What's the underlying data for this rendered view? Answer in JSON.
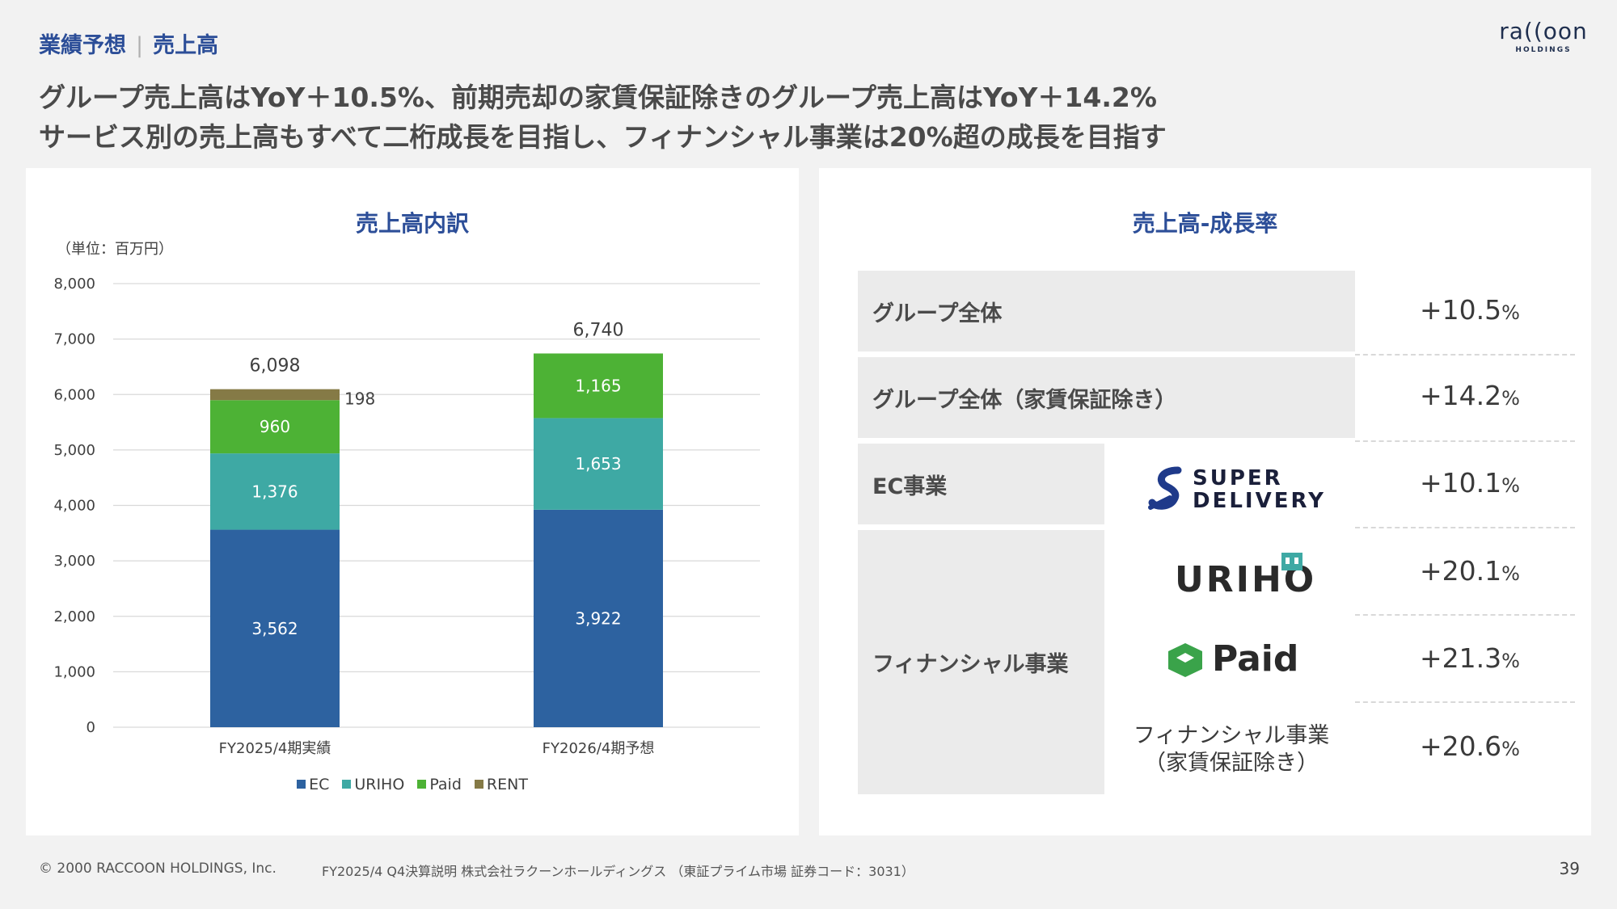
{
  "header": {
    "section": "業績予想",
    "subsection": "売上高"
  },
  "logo": {
    "word": "ra((oon",
    "sub": "HOLDINGS"
  },
  "headline": {
    "line1": "グループ売上高はYoY＋10.5%、前期売却の家賃保証除きのグループ売上高はYoY＋14.2%",
    "line2": "サービス別の売上高もすべて二桁成長を目指し、フィナンシャル事業は20%超の成長を目指す"
  },
  "left_panel": {
    "title": "売上高内訳",
    "unit": "（単位：百万円）"
  },
  "chart_data": {
    "type": "bar",
    "stacked": true,
    "categories": [
      "FY2025/4期実績",
      "FY2026/4期予想"
    ],
    "series": [
      {
        "name": "EC",
        "values": [
          3562,
          3922
        ],
        "color": "#2d62a0"
      },
      {
        "name": "URIHO",
        "values": [
          1376,
          1653
        ],
        "color": "#3ea9a4"
      },
      {
        "name": "Paid",
        "values": [
          960,
          1165
        ],
        "color": "#4db235"
      },
      {
        "name": "RENT",
        "values": [
          198,
          null
        ],
        "color": "#857a46"
      }
    ],
    "value_labels": [
      [
        "3,562",
        "1,376",
        "960",
        "198"
      ],
      [
        "3,922",
        "1,653",
        "1,165",
        ""
      ]
    ],
    "totals": [
      "6,098",
      "6,740"
    ],
    "total_values": [
      6098,
      6740
    ],
    "ylim": [
      0,
      8000
    ],
    "yticks": [
      0,
      1000,
      2000,
      3000,
      4000,
      5000,
      6000,
      7000,
      8000
    ],
    "ytick_labels": [
      "0",
      "1,000",
      "2,000",
      "3,000",
      "4,000",
      "5,000",
      "6,000",
      "7,000",
      "8,000"
    ],
    "grid": true,
    "legend_position": "bottom"
  },
  "right_panel": {
    "title": "売上高-成長率",
    "rows": [
      {
        "label": "グループ全体",
        "rate": "+10.5",
        "pct": "%"
      },
      {
        "label": "グループ全体（家賃保証除き）",
        "rate": "+14.2",
        "pct": "%"
      },
      {
        "label": "EC事業",
        "brand": "SUPER DELIVERY",
        "brand_line1": "SUPER",
        "brand_line2": "DELIVERY",
        "rate": "+10.1",
        "pct": "%"
      },
      {
        "brand": "URIHO",
        "rate": "+20.1",
        "pct": "%"
      },
      {
        "brand": "Paid",
        "rate": "+21.3",
        "pct": "%"
      },
      {
        "sub_line1": "フィナンシャル事業",
        "sub_line2": "（家賃保証除き）",
        "rate": "+20.6",
        "pct": "%"
      }
    ],
    "finance_label": "フィナンシャル事業"
  },
  "footer": {
    "copyright": "© 2000 RACCOON HOLDINGS, Inc.",
    "document": "FY2025/4 Q4決算説明 株式会社ラクーンホールディングス （東証プライム市場 証券コード：3031）",
    "page": "39"
  }
}
